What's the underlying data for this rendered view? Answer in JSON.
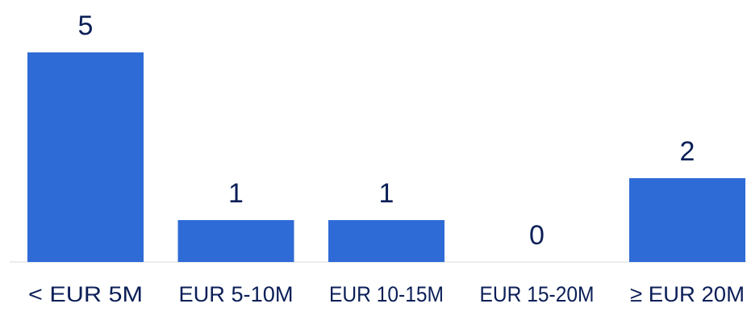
{
  "chart_data": {
    "type": "bar",
    "title": "",
    "xlabel": "",
    "ylabel": "",
    "categories": [
      "< EUR 5M",
      "EUR 5-10M",
      "EUR 10-15M",
      "EUR 15-20M",
      "≥ EUR 20M"
    ],
    "values": [
      5,
      1,
      1,
      0,
      2
    ],
    "ylim": [
      0,
      5
    ],
    "grid": false,
    "legend": "none",
    "data_labels": true,
    "colors": {
      "bar": "#2f6bd6",
      "label_text": "#0b1f57",
      "axis_line": "#d9d9d9"
    }
  }
}
